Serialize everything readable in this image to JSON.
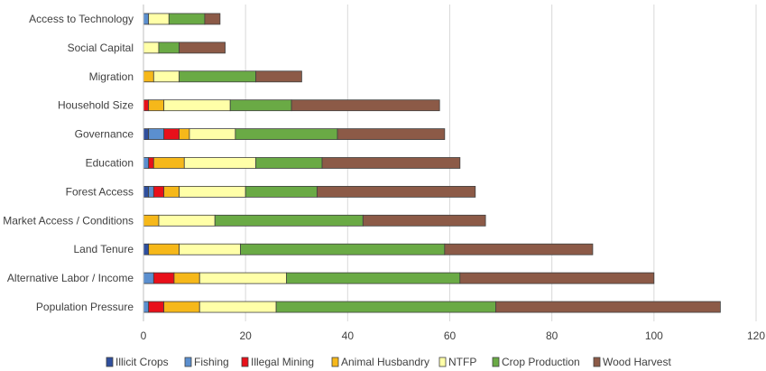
{
  "chart_data": {
    "type": "bar",
    "orientation": "horizontal",
    "stacked": true,
    "title": "",
    "xlabel": "",
    "ylabel": "",
    "xlim": [
      0,
      120
    ],
    "x_ticks": [
      0,
      20,
      40,
      60,
      80,
      100,
      120
    ],
    "grid": "vertical",
    "legend_position": "bottom",
    "categories": [
      "Access to Technology",
      "Social Capital",
      "Migration",
      "Household Size",
      "Governance",
      "Education",
      "Forest Access",
      "Market Access / Conditions",
      "Land Tenure",
      "Alternative Labor / Income",
      "Population Pressure"
    ],
    "series": [
      {
        "name": "Illicit Crops",
        "color": "#2f4f9e",
        "values": [
          0,
          0,
          0,
          0,
          1,
          0,
          1,
          0,
          1,
          0,
          0
        ]
      },
      {
        "name": "Fishing",
        "color": "#5b8fcf",
        "values": [
          1,
          0,
          0,
          0,
          3,
          1,
          1,
          0,
          0,
          2,
          1
        ]
      },
      {
        "name": "Illegal Mining",
        "color": "#e8101a",
        "values": [
          0,
          0,
          0,
          1,
          3,
          1,
          2,
          0,
          0,
          4,
          3
        ]
      },
      {
        "name": "Animal Husbandry",
        "color": "#f6b81a",
        "values": [
          0,
          0,
          2,
          3,
          2,
          6,
          3,
          3,
          6,
          5,
          7
        ]
      },
      {
        "name": "NTFP",
        "color": "#ffffa8",
        "values": [
          4,
          3,
          5,
          13,
          9,
          14,
          13,
          11,
          12,
          17,
          15
        ]
      },
      {
        "name": "Crop Production",
        "color": "#6aaa45",
        "values": [
          7,
          4,
          15,
          12,
          20,
          13,
          14,
          29,
          40,
          34,
          43
        ]
      },
      {
        "name": "Wood Harvest",
        "color": "#8c5a47",
        "values": [
          3,
          9,
          9,
          29,
          21,
          27,
          31,
          24,
          29,
          38,
          44
        ]
      }
    ]
  }
}
